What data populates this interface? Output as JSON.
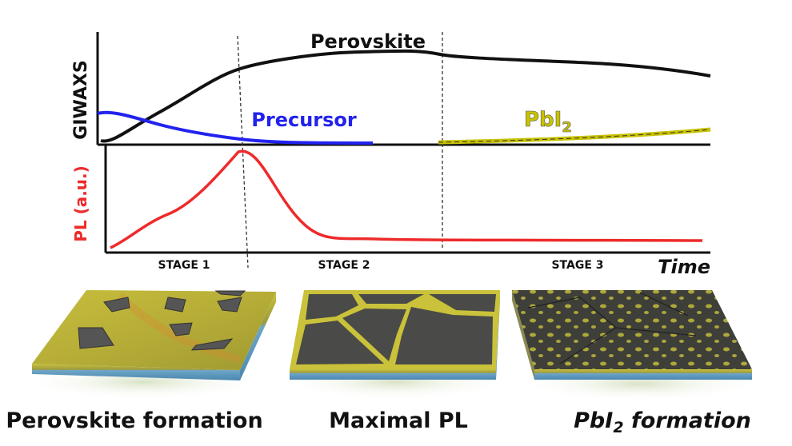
{
  "top_panel": {
    "y_label": "GIWAXS",
    "curves": [
      "Perovskite",
      "Precursor"
    ],
    "pbi2": {
      "text": "PbI",
      "subscript": "2"
    }
  },
  "bottom_panel": {
    "y_label": "PL (a.u.)"
  },
  "x_axis": {
    "stages": [
      "STAGE 1",
      "STAGE 2",
      "STAGE 3"
    ],
    "label": "Time"
  },
  "films": [
    {
      "caption": "Perovskite formation"
    },
    {
      "caption": "Maximal PL"
    },
    {
      "caption": {
        "text": "PbI",
        "subscript": "2",
        "rest": " formation"
      }
    }
  ]
}
